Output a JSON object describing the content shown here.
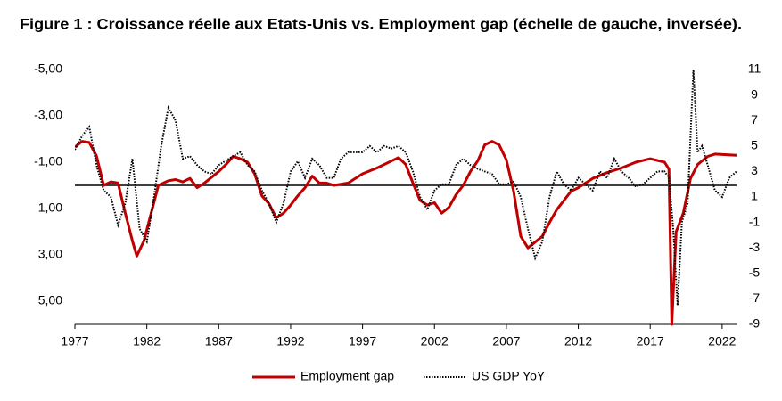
{
  "chart_data": {
    "type": "line",
    "title": "Figure 1 : Croissance réelle aux Etats-Unis vs. Employment gap (échelle de gauche, inversée).",
    "xlim": [
      1977,
      2023
    ],
    "xticks": [
      1977,
      1982,
      1987,
      1992,
      1997,
      2002,
      2007,
      2012,
      2017,
      2022
    ],
    "ylim": [
      -5,
      6
    ],
    "y_inverted": true,
    "yticks": [
      {
        "value": -5,
        "label": "-5,00"
      },
      {
        "value": -3,
        "label": "-3,00"
      },
      {
        "value": -1,
        "label": "-1,00"
      },
      {
        "value": 1,
        "label": "1,00"
      },
      {
        "value": 3,
        "label": "3,00"
      },
      {
        "value": 5,
        "label": "5,00"
      }
    ],
    "y2lim": [
      -9,
      11
    ],
    "y2ticks": [
      11,
      9,
      7,
      5,
      3,
      1,
      -1,
      -3,
      -5,
      -7,
      -9
    ],
    "reference_line": 0,
    "legend": "bottom",
    "series": [
      {
        "name": "Employment gap",
        "color": "#c00000",
        "style": "solid",
        "x": [
          1977,
          1977.5,
          1978,
          1978.5,
          1979,
          1979.5,
          1980,
          1980.5,
          1981,
          1981.3,
          1981.8,
          1982.3,
          1982.8,
          1983.5,
          1984,
          1984.5,
          1985,
          1985.5,
          1986,
          1987,
          1987.5,
          1988,
          1988.5,
          1989,
          1989.5,
          1990,
          1990.5,
          1991,
          1991.5,
          1992,
          1992.5,
          1993,
          1993.5,
          1994,
          1994.5,
          1995,
          1996,
          1997,
          1998,
          1999,
          1999.5,
          2000,
          2000.5,
          2001,
          2001.5,
          2002,
          2002.5,
          2003,
          2003.5,
          2004,
          2004.5,
          2005,
          2005.5,
          2006,
          2006.5,
          2007,
          2007.5,
          2008,
          2008.5,
          2009,
          2009.5,
          2010,
          2010.5,
          2011,
          2011.5,
          2012,
          2013,
          2014,
          2015,
          2016,
          2017,
          2018,
          2018.3,
          2018.5,
          2018.8,
          2019.3,
          2019.8,
          2020.3,
          2021,
          2021.5,
          2023
        ],
        "values": [
          -1.65,
          -1.9,
          -1.85,
          -1.27,
          0,
          -0.15,
          -0.1,
          1.2,
          2.4,
          3.05,
          2.4,
          1.2,
          0,
          -0.2,
          -0.25,
          -0.15,
          -0.3,
          0.1,
          -0.1,
          -0.6,
          -0.9,
          -1.25,
          -1.15,
          -1,
          -0.5,
          0.45,
          0.8,
          1.4,
          1.2,
          0.85,
          0.45,
          0.1,
          -0.4,
          -0.1,
          -0.1,
          0,
          -0.1,
          -0.5,
          -0.75,
          -1.05,
          -1.2,
          -0.9,
          -0.1,
          0.65,
          0.85,
          0.75,
          1.2,
          0.95,
          0.4,
          0,
          -0.6,
          -1.05,
          -1.75,
          -1.9,
          -1.75,
          -1.1,
          0.25,
          2.2,
          2.7,
          2.45,
          2.2,
          1.6,
          1.05,
          0.65,
          0.25,
          0.1,
          -0.3,
          -0.55,
          -0.75,
          -1,
          -1.15,
          -1,
          -0.7,
          6,
          2.0,
          1.2,
          -0.3,
          -0.9,
          -1.25,
          -1.35,
          -1.3
        ]
      },
      {
        "name": "US GDP YoY",
        "color": "#000000",
        "style": "dotted",
        "axis": "y2",
        "x": [
          1977,
          1977.5,
          1978,
          1978.5,
          1979,
          1979.5,
          1980,
          1980.5,
          1981,
          1981.5,
          1982,
          1982.5,
          1983,
          1983.5,
          1984,
          1984.5,
          1985,
          1985.5,
          1986,
          1986.5,
          1987,
          1988,
          1988.5,
          1989,
          1989.5,
          1990,
          1990.5,
          1991,
          1991.5,
          1992,
          1992.5,
          1993,
          1993.5,
          1994,
          1994.5,
          1995,
          1995.5,
          1996,
          1997,
          1997.5,
          1998,
          1998.5,
          1999,
          1999.5,
          2000,
          2000.5,
          2001,
          2001.5,
          2002,
          2002.5,
          2003,
          2003.5,
          2004,
          2004.5,
          2005,
          2005.5,
          2006,
          2006.5,
          2007,
          2007.5,
          2008,
          2008.5,
          2009,
          2009.5,
          2010,
          2010.5,
          2011,
          2011.5,
          2012,
          2012.5,
          2013,
          2013.5,
          2014,
          2014.5,
          2015,
          2015.5,
          2016,
          2016.5,
          2017,
          2017.5,
          2018,
          2018.3,
          2018.6,
          2018.9,
          2019.2,
          2019.6,
          2020,
          2020.3,
          2020.6,
          2021,
          2021.5,
          2022,
          2022.5,
          2023
        ],
        "values": [
          4.7,
          5.8,
          6.5,
          3.5,
          1.5,
          1.0,
          -1.2,
          0.5,
          4.0,
          -1.5,
          -2.5,
          1.0,
          5.0,
          8.0,
          7.0,
          4.0,
          4.2,
          3.5,
          3.0,
          2.8,
          3.5,
          4.2,
          4.5,
          3.5,
          3.0,
          1.5,
          0.5,
          -1.0,
          0.5,
          3.0,
          3.8,
          2.5,
          4.0,
          3.5,
          2.5,
          2.5,
          4.0,
          4.5,
          4.5,
          5.0,
          4.5,
          5.0,
          4.8,
          5.0,
          4.5,
          3.0,
          1.0,
          0.0,
          1.5,
          2.0,
          2.0,
          3.5,
          4.0,
          3.5,
          3.2,
          3.0,
          2.8,
          2.0,
          2.0,
          2.2,
          1.0,
          -1.5,
          -3.8,
          -2.5,
          1.0,
          3.0,
          2.0,
          1.5,
          2.5,
          2.0,
          1.5,
          3.0,
          2.5,
          4.0,
          3.0,
          2.5,
          1.8,
          2.0,
          2.5,
          3.0,
          3.0,
          2.5,
          -1.5,
          -7.5,
          -1.0,
          0.5,
          11.0,
          4.5,
          5.0,
          3.5,
          1.5,
          1.0,
          2.5,
          3.0
        ]
      }
    ]
  }
}
